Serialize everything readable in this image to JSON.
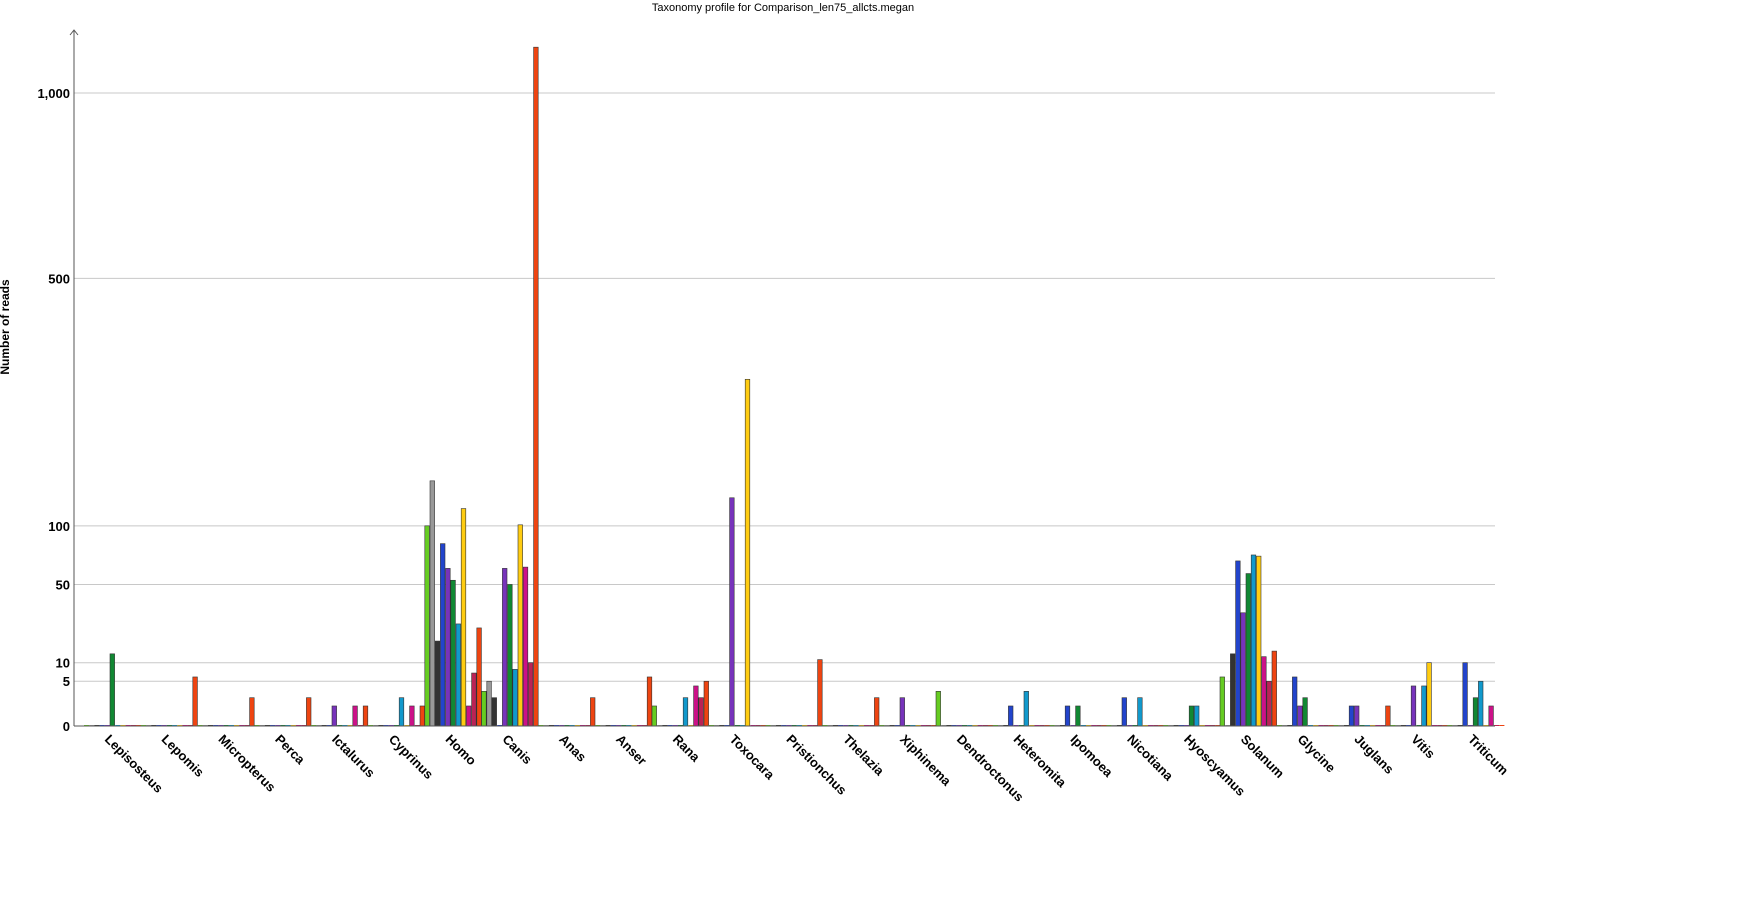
{
  "chart_data": {
    "type": "bar",
    "title": "Taxonomy profile for Comparison_len75_allcts.megan",
    "ylabel": "Number of reads",
    "xlabel": "",
    "yscale": "sqrt",
    "ylim": [
      0,
      1200
    ],
    "yticks": [
      0,
      5,
      10,
      50,
      100,
      500,
      1000
    ],
    "ytick_labels": [
      "0",
      "5",
      "10",
      "50",
      "100",
      "500",
      "1,000"
    ],
    "grid": true,
    "legend": "none",
    "categories": [
      "Lepisosteus",
      "Lepomis",
      "Micropterus",
      "Perca",
      "Ictalurus",
      "Cyprinus",
      "Homo",
      "Canis",
      "Anas",
      "Anser",
      "Rana",
      "Toxocara",
      "Pristionchus",
      "Thelazia",
      "Xiphinema",
      "Dendroctonus",
      "Heteromita",
      "Ipomoea",
      "Nicotiana",
      "Hyoscyamus",
      "Solanum",
      "Glycine",
      "Juglans",
      "Vitis",
      "Triticum"
    ],
    "series": [
      {
        "color": "#66cc22",
        "values": [
          0,
          0,
          0,
          0,
          0,
          0,
          100,
          3,
          0,
          0,
          1,
          0,
          0,
          0,
          0,
          3,
          0,
          0,
          0,
          0,
          6,
          0,
          0,
          0,
          0
        ]
      },
      {
        "color": "#999999",
        "values": [
          0,
          0,
          0,
          0,
          0,
          0,
          150,
          5,
          0,
          0,
          0,
          0,
          0,
          0,
          0,
          0,
          0,
          0,
          0,
          0,
          0,
          0,
          0,
          0,
          0
        ]
      },
      {
        "color": "#333333",
        "values": [
          0,
          0,
          0,
          0,
          0,
          0,
          18,
          2,
          0,
          0,
          0,
          0,
          0,
          0,
          0,
          0,
          0,
          0,
          0,
          0,
          13,
          0,
          0,
          0,
          0
        ]
      },
      {
        "color": "#2244cc",
        "values": [
          0,
          0,
          0,
          0,
          0,
          0,
          83,
          0,
          0,
          0,
          0,
          0,
          0,
          0,
          0,
          0,
          1,
          1,
          2,
          0,
          68,
          6,
          1,
          0,
          10
        ]
      },
      {
        "color": "#7733bb",
        "values": [
          0,
          0,
          0,
          0,
          1,
          0,
          62,
          62,
          0,
          0,
          0,
          130,
          0,
          0,
          2,
          0,
          0,
          0,
          0,
          0,
          32,
          1,
          1,
          4,
          0
        ]
      },
      {
        "color": "#118833",
        "values": [
          13,
          0,
          0,
          0,
          0,
          0,
          53,
          50,
          0,
          0,
          0,
          0,
          0,
          0,
          0,
          0,
          0,
          1,
          0,
          1,
          58,
          2,
          0,
          0,
          2
        ]
      },
      {
        "color": "#1199cc",
        "values": [
          0,
          0,
          0,
          0,
          0,
          2,
          26,
          8,
          0,
          0,
          2,
          0,
          0,
          0,
          0,
          0,
          3,
          0,
          2,
          1,
          73,
          0,
          0,
          4,
          5
        ]
      },
      {
        "color": "#ffcc11",
        "values": [
          0,
          0,
          0,
          0,
          0,
          0,
          118,
          101,
          0,
          0,
          0,
          300,
          0,
          0,
          0,
          0,
          0,
          0,
          0,
          0,
          72,
          0,
          0,
          10,
          0
        ]
      },
      {
        "color": "#cc1188",
        "values": [
          0,
          0,
          0,
          0,
          1,
          1,
          1,
          63,
          0,
          0,
          4,
          0,
          0,
          0,
          0,
          0,
          0,
          0,
          0,
          0,
          12,
          0,
          0,
          0,
          1
        ]
      },
      {
        "color": "#bb2255",
        "values": [
          0,
          0,
          0,
          0,
          0,
          0,
          7,
          10,
          0,
          0,
          2,
          0,
          0,
          0,
          0,
          0,
          0,
          0,
          0,
          0,
          5,
          0,
          0,
          0,
          0
        ]
      },
      {
        "color": "#ee4411",
        "values": [
          0,
          6,
          2,
          2,
          1,
          1,
          24,
          1150,
          2,
          6,
          5,
          0,
          11,
          2,
          0,
          0,
          0,
          0,
          0,
          0,
          14,
          0,
          1,
          0,
          0
        ]
      }
    ]
  }
}
